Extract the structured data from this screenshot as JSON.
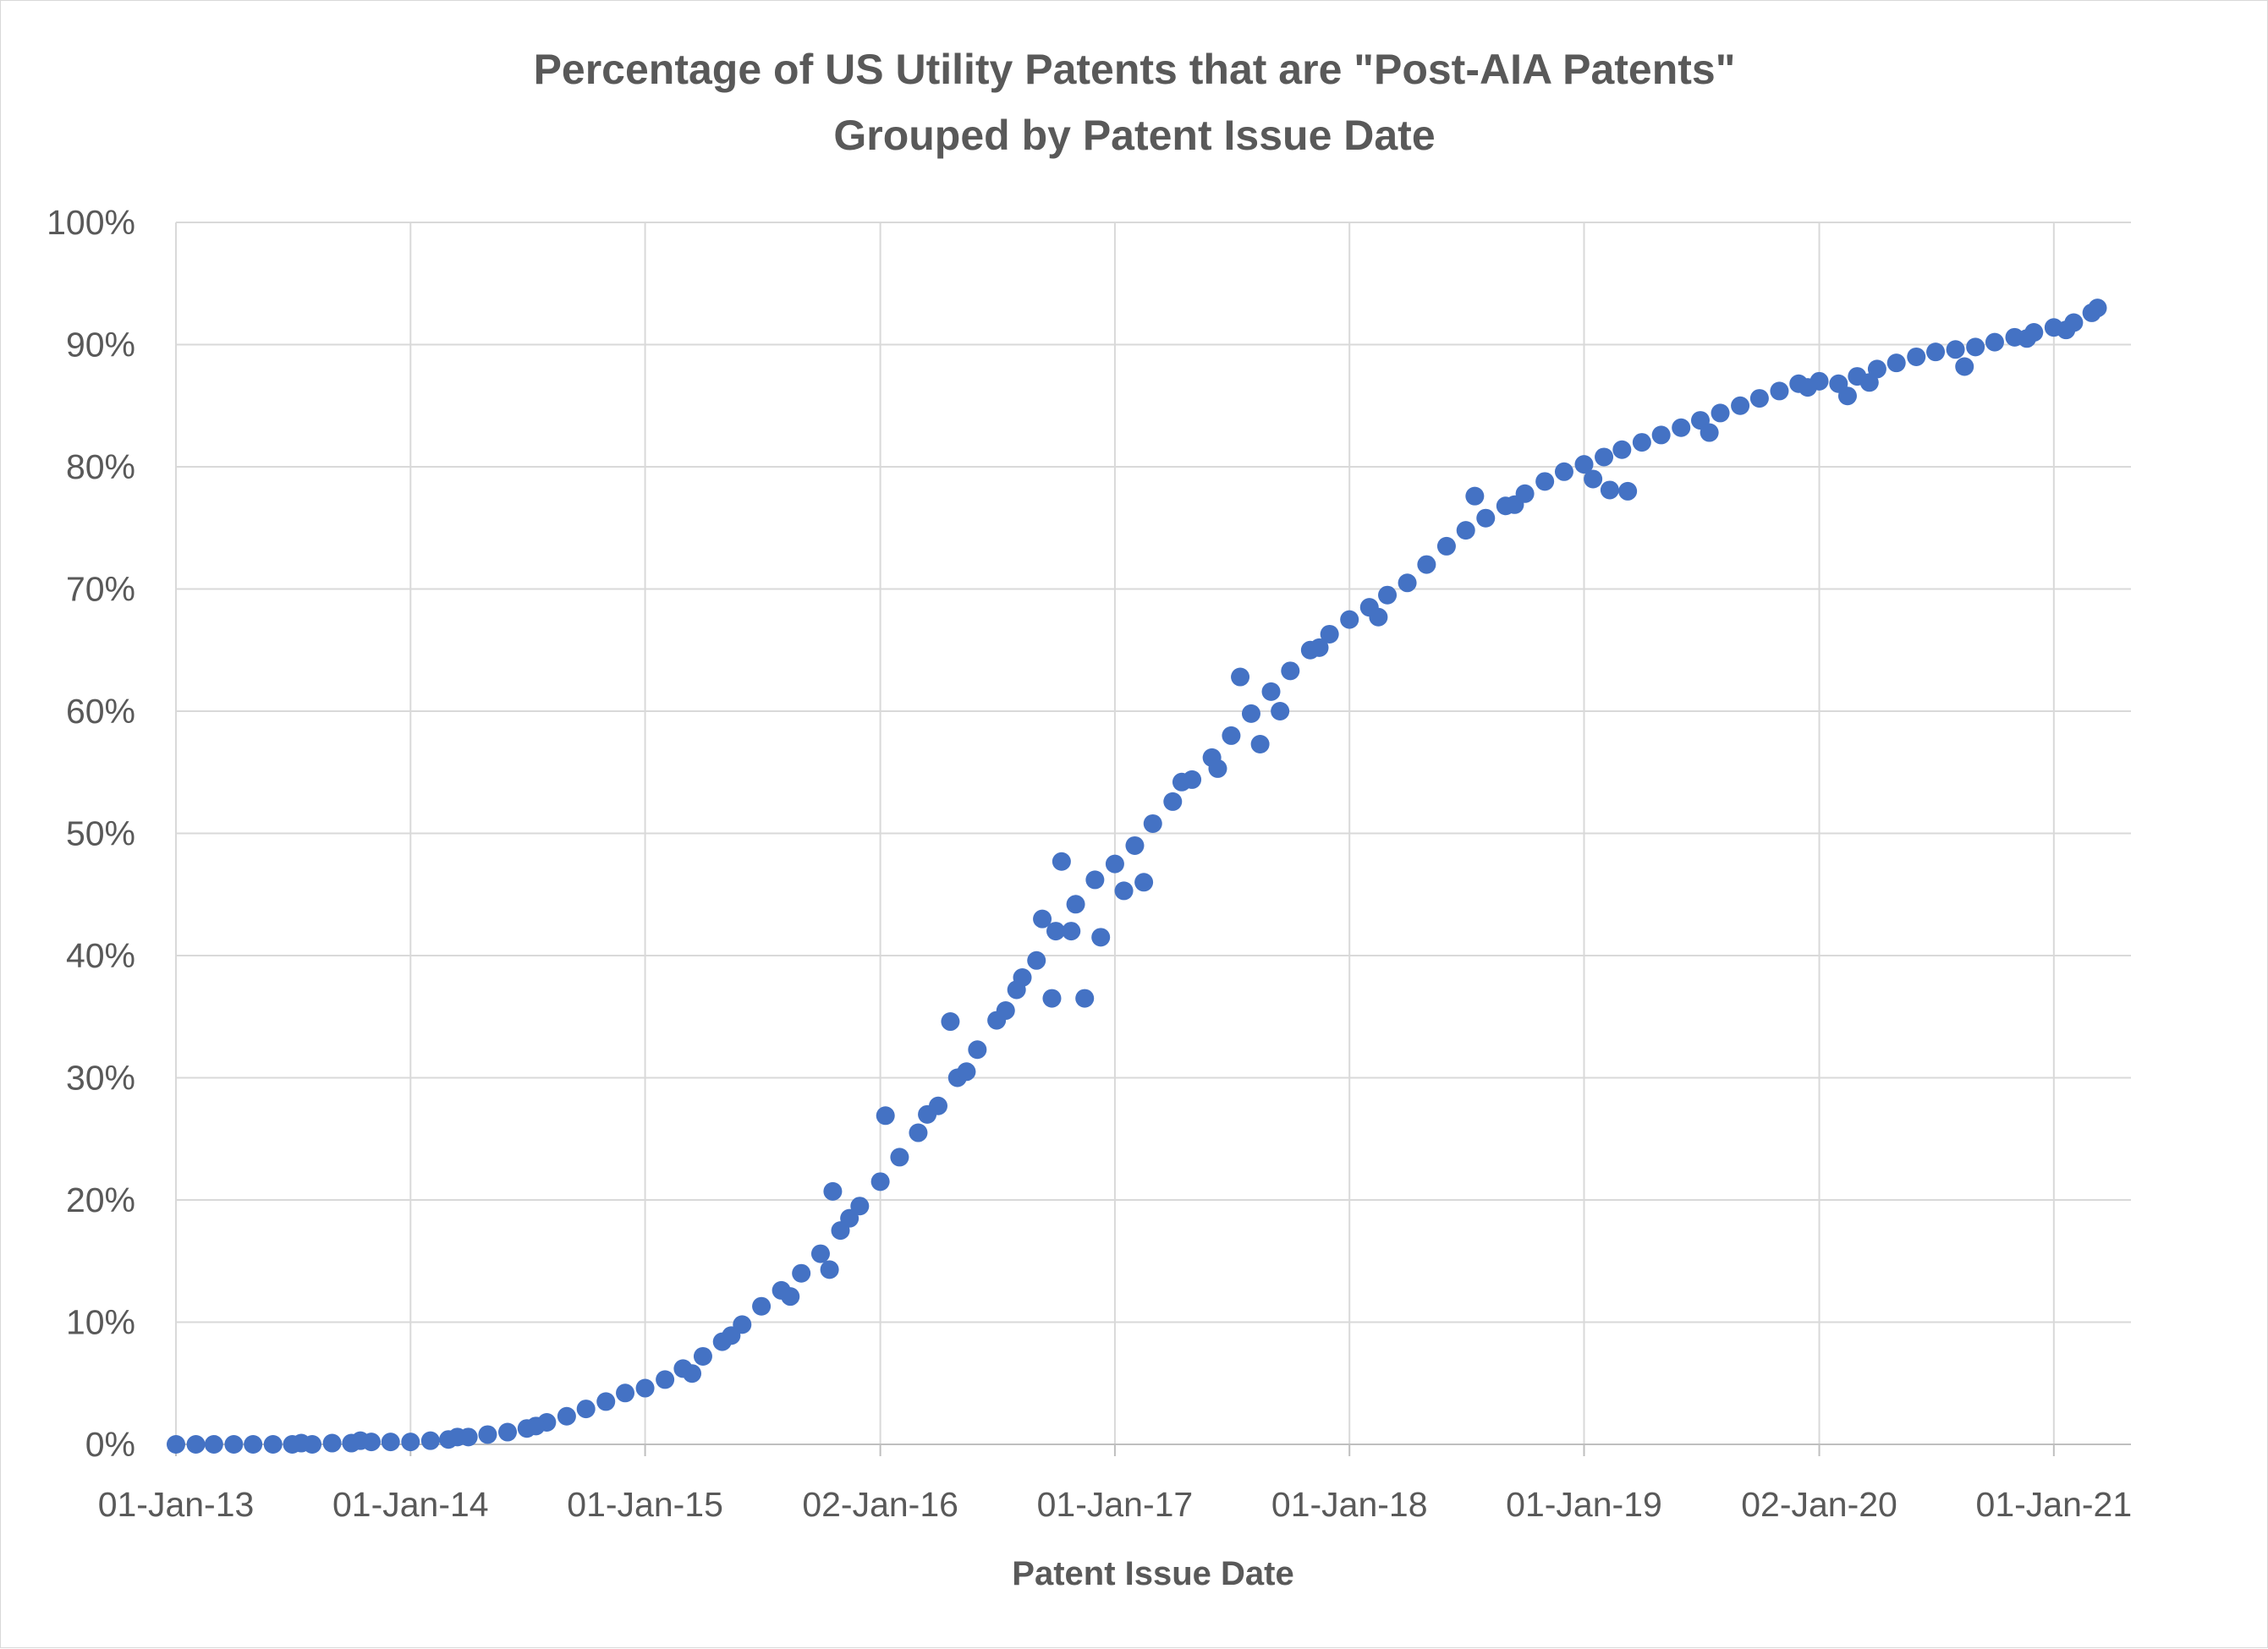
{
  "chart_data": {
    "type": "scatter",
    "title": "Percentage of US Utility Patents that are \"Post-AIA Patents\"",
    "subtitle": "Grouped by Patent Issue Date",
    "xlabel": "Patent Issue Date",
    "ylabel": "",
    "xlim": [
      "2013-01-01",
      "2021-05-01"
    ],
    "ylim": [
      0,
      100
    ],
    "x_ticks": [
      {
        "date": "2013-01-01",
        "label": "01-Jan-13"
      },
      {
        "date": "2014-01-01",
        "label": "01-Jan-14"
      },
      {
        "date": "2015-01-01",
        "label": "01-Jan-15"
      },
      {
        "date": "2016-01-02",
        "label": "02-Jan-16"
      },
      {
        "date": "2017-01-01",
        "label": "01-Jan-17"
      },
      {
        "date": "2018-01-01",
        "label": "01-Jan-18"
      },
      {
        "date": "2019-01-01",
        "label": "01-Jan-19"
      },
      {
        "date": "2020-01-02",
        "label": "02-Jan-20"
      },
      {
        "date": "2021-01-01",
        "label": "01-Jan-21"
      }
    ],
    "y_ticks": [
      {
        "value": 0,
        "label": "0%"
      },
      {
        "value": 10,
        "label": "10%"
      },
      {
        "value": 20,
        "label": "20%"
      },
      {
        "value": 30,
        "label": "30%"
      },
      {
        "value": 40,
        "label": "40%"
      },
      {
        "value": 50,
        "label": "50%"
      },
      {
        "value": 60,
        "label": "60%"
      },
      {
        "value": 70,
        "label": "70%"
      },
      {
        "value": 80,
        "label": "80%"
      },
      {
        "value": 90,
        "label": "90%"
      },
      {
        "value": 100,
        "label": "100%"
      }
    ],
    "grid": true,
    "legend": "none",
    "marker_color": "#4472c4",
    "points": [
      {
        "x": "2013-01-01",
        "y": 0
      },
      {
        "x": "2013-02-01",
        "y": 0
      },
      {
        "x": "2013-03-01",
        "y": 0
      },
      {
        "x": "2013-04-01",
        "y": 0
      },
      {
        "x": "2013-05-01",
        "y": 0
      },
      {
        "x": "2013-06-01",
        "y": 0
      },
      {
        "x": "2013-07-01",
        "y": 0
      },
      {
        "x": "2013-08-01",
        "y": 0
      },
      {
        "x": "2013-09-01",
        "y": 0.1
      },
      {
        "x": "2013-10-01",
        "y": 0.1
      },
      {
        "x": "2013-11-01",
        "y": 0.2
      },
      {
        "x": "2013-12-01",
        "y": 0.2
      },
      {
        "x": "2014-01-01",
        "y": 0.2
      },
      {
        "x": "2014-02-01",
        "y": 0.3
      },
      {
        "x": "2014-03-01",
        "y": 0.4
      },
      {
        "x": "2014-04-01",
        "y": 0.6
      },
      {
        "x": "2014-05-01",
        "y": 0.8
      },
      {
        "x": "2014-06-01",
        "y": 1.0
      },
      {
        "x": "2014-07-01",
        "y": 1.3
      },
      {
        "x": "2014-08-01",
        "y": 1.8
      },
      {
        "x": "2014-09-01",
        "y": 2.3
      },
      {
        "x": "2014-10-01",
        "y": 2.9
      },
      {
        "x": "2014-11-01",
        "y": 3.5
      },
      {
        "x": "2014-12-01",
        "y": 4.2
      },
      {
        "x": "2015-01-01",
        "y": 4.6
      },
      {
        "x": "2015-02-01",
        "y": 5.3
      },
      {
        "x": "2015-03-01",
        "y": 6.2
      },
      {
        "x": "2015-04-01",
        "y": 7.2
      },
      {
        "x": "2015-05-01",
        "y": 8.4
      },
      {
        "x": "2015-06-01",
        "y": 9.8
      },
      {
        "x": "2015-07-01",
        "y": 11.3
      },
      {
        "x": "2015-08-01",
        "y": 12.6
      },
      {
        "x": "2015-09-01",
        "y": 14.0
      },
      {
        "x": "2015-10-01",
        "y": 15.6
      },
      {
        "x": "2015-11-01",
        "y": 17.5
      },
      {
        "x": "2015-12-01",
        "y": 19.5
      },
      {
        "x": "2016-01-02",
        "y": 21.5
      },
      {
        "x": "2016-02-01",
        "y": 23.5
      },
      {
        "x": "2016-03-01",
        "y": 25.5
      },
      {
        "x": "2016-04-01",
        "y": 27.7
      },
      {
        "x": "2016-05-01",
        "y": 30.0
      },
      {
        "x": "2016-06-01",
        "y": 32.3
      },
      {
        "x": "2016-07-01",
        "y": 34.7
      },
      {
        "x": "2016-08-01",
        "y": 37.2
      },
      {
        "x": "2016-09-01",
        "y": 39.6
      },
      {
        "x": "2016-10-01",
        "y": 42.0
      },
      {
        "x": "2016-11-01",
        "y": 44.2
      },
      {
        "x": "2016-12-01",
        "y": 46.2
      },
      {
        "x": "2017-01-01",
        "y": 47.5
      },
      {
        "x": "2017-02-01",
        "y": 49.0
      },
      {
        "x": "2017-03-01",
        "y": 50.8
      },
      {
        "x": "2017-04-01",
        "y": 52.6
      },
      {
        "x": "2017-05-01",
        "y": 54.4
      },
      {
        "x": "2017-06-01",
        "y": 56.2
      },
      {
        "x": "2017-07-01",
        "y": 58.0
      },
      {
        "x": "2017-08-01",
        "y": 59.8
      },
      {
        "x": "2017-09-01",
        "y": 61.6
      },
      {
        "x": "2017-10-01",
        "y": 63.3
      },
      {
        "x": "2017-11-01",
        "y": 65.0
      },
      {
        "x": "2017-12-01",
        "y": 66.3
      },
      {
        "x": "2018-01-01",
        "y": 67.5
      },
      {
        "x": "2018-02-01",
        "y": 68.5
      },
      {
        "x": "2018-03-01",
        "y": 69.5
      },
      {
        "x": "2018-04-01",
        "y": 70.5
      },
      {
        "x": "2018-05-01",
        "y": 72.0
      },
      {
        "x": "2018-06-01",
        "y": 73.5
      },
      {
        "x": "2018-07-01",
        "y": 74.8
      },
      {
        "x": "2018-08-01",
        "y": 75.8
      },
      {
        "x": "2018-09-01",
        "y": 76.8
      },
      {
        "x": "2018-10-01",
        "y": 77.8
      },
      {
        "x": "2018-11-01",
        "y": 78.8
      },
      {
        "x": "2018-12-01",
        "y": 79.6
      },
      {
        "x": "2019-01-01",
        "y": 80.2
      },
      {
        "x": "2019-02-01",
        "y": 80.8
      },
      {
        "x": "2019-03-01",
        "y": 81.4
      },
      {
        "x": "2019-04-01",
        "y": 82.0
      },
      {
        "x": "2019-05-01",
        "y": 82.6
      },
      {
        "x": "2019-06-01",
        "y": 83.2
      },
      {
        "x": "2019-07-01",
        "y": 83.8
      },
      {
        "x": "2019-08-01",
        "y": 84.4
      },
      {
        "x": "2019-09-01",
        "y": 85.0
      },
      {
        "x": "2019-10-01",
        "y": 85.6
      },
      {
        "x": "2019-11-01",
        "y": 86.2
      },
      {
        "x": "2019-12-01",
        "y": 86.8
      },
      {
        "x": "2020-01-02",
        "y": 87.0
      },
      {
        "x": "2020-02-01",
        "y": 86.8
      },
      {
        "x": "2020-03-01",
        "y": 87.4
      },
      {
        "x": "2020-04-01",
        "y": 88.0
      },
      {
        "x": "2020-05-01",
        "y": 88.5
      },
      {
        "x": "2020-06-01",
        "y": 89.0
      },
      {
        "x": "2020-07-01",
        "y": 89.4
      },
      {
        "x": "2020-08-01",
        "y": 89.6
      },
      {
        "x": "2020-09-01",
        "y": 89.8
      },
      {
        "x": "2020-10-01",
        "y": 90.2
      },
      {
        "x": "2020-11-01",
        "y": 90.6
      },
      {
        "x": "2020-12-01",
        "y": 91.0
      },
      {
        "x": "2021-01-01",
        "y": 91.4
      },
      {
        "x": "2021-02-01",
        "y": 91.8
      },
      {
        "x": "2021-03-01",
        "y": 92.6
      },
      {
        "x": "2013-07-15",
        "y": 0.1
      },
      {
        "x": "2013-10-15",
        "y": 0.3
      },
      {
        "x": "2014-03-15",
        "y": 0.6
      },
      {
        "x": "2014-07-15",
        "y": 1.5
      },
      {
        "x": "2015-03-15",
        "y": 5.8
      },
      {
        "x": "2015-05-15",
        "y": 8.9
      },
      {
        "x": "2015-08-15",
        "y": 12.1
      },
      {
        "x": "2015-10-15",
        "y": 14.3
      },
      {
        "x": "2015-10-20",
        "y": 20.7
      },
      {
        "x": "2015-11-15",
        "y": 18.5
      },
      {
        "x": "2016-01-10",
        "y": 26.9
      },
      {
        "x": "2016-03-15",
        "y": 27.0
      },
      {
        "x": "2016-04-20",
        "y": 34.6
      },
      {
        "x": "2016-05-15",
        "y": 30.5
      },
      {
        "x": "2016-07-15",
        "y": 35.5
      },
      {
        "x": "2016-08-10",
        "y": 38.2
      },
      {
        "x": "2016-09-10",
        "y": 43.0
      },
      {
        "x": "2016-09-25",
        "y": 36.5
      },
      {
        "x": "2016-10-10",
        "y": 47.7
      },
      {
        "x": "2016-10-25",
        "y": 42.0
      },
      {
        "x": "2016-11-15",
        "y": 36.5
      },
      {
        "x": "2016-12-10",
        "y": 41.5
      },
      {
        "x": "2017-01-15",
        "y": 45.3
      },
      {
        "x": "2017-02-15",
        "y": 46.0
      },
      {
        "x": "2017-04-15",
        "y": 54.2
      },
      {
        "x": "2017-06-10",
        "y": 55.3
      },
      {
        "x": "2017-07-15",
        "y": 62.8
      },
      {
        "x": "2017-08-15",
        "y": 57.3
      },
      {
        "x": "2017-09-15",
        "y": 60.0
      },
      {
        "x": "2017-11-15",
        "y": 65.2
      },
      {
        "x": "2018-02-15",
        "y": 67.7
      },
      {
        "x": "2018-07-15",
        "y": 77.6
      },
      {
        "x": "2018-09-15",
        "y": 76.9
      },
      {
        "x": "2019-01-15",
        "y": 79.0
      },
      {
        "x": "2019-02-10",
        "y": 78.1
      },
      {
        "x": "2019-03-10",
        "y": 78.0
      },
      {
        "x": "2019-07-15",
        "y": 82.8
      },
      {
        "x": "2019-12-15",
        "y": 86.5
      },
      {
        "x": "2020-02-15",
        "y": 85.8
      },
      {
        "x": "2020-03-20",
        "y": 86.9
      },
      {
        "x": "2020-08-15",
        "y": 88.2
      },
      {
        "x": "2020-11-20",
        "y": 90.5
      },
      {
        "x": "2021-01-20",
        "y": 91.2
      },
      {
        "x": "2021-03-10",
        "y": 93.0
      }
    ]
  }
}
